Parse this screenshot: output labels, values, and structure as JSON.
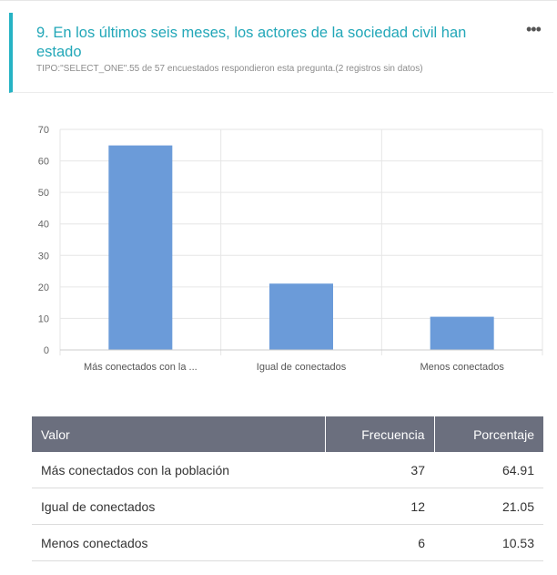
{
  "question": {
    "title": "9. En los últimos seis meses, los actores de la sociedad civil han estado",
    "meta": "TIPO:\"SELECT_ONE\".55 de 57 encuestados respondieron esta pregunta.(2 registros sin datos)",
    "more_icon": "more-horizontal-icon",
    "accent_color": "#26b3c4"
  },
  "chart_data": {
    "type": "bar",
    "categories": [
      "Más conectados con la ...",
      "Igual de conectados",
      "Menos conectados"
    ],
    "values": [
      64.91,
      21.05,
      10.53
    ],
    "ylim": [
      0,
      70
    ],
    "yticks": [
      0,
      10,
      20,
      30,
      40,
      50,
      60,
      70
    ],
    "grid": true,
    "bar_color": "#6b9bd9"
  },
  "table": {
    "headers": [
      "Valor",
      "Frecuencia",
      "Porcentaje"
    ],
    "rows": [
      [
        "Más conectados con la población",
        "37",
        "64.91"
      ],
      [
        "Igual de conectados",
        "12",
        "21.05"
      ],
      [
        "Menos conectados",
        "6",
        "10.53"
      ]
    ]
  }
}
